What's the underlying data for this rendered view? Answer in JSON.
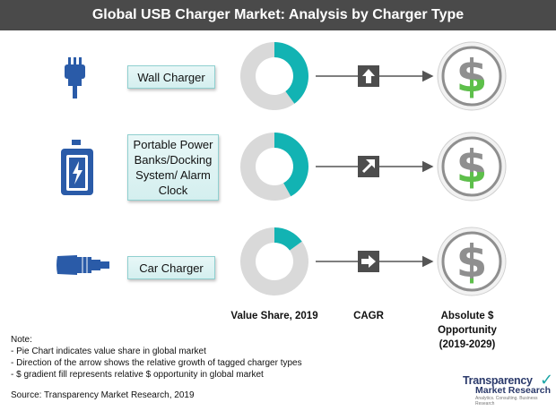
{
  "title": "Global USB Charger Market: Analysis by Charger Type",
  "columns": {
    "value_share": "Value Share, 2019",
    "cagr": "CAGR",
    "opportunity_line1": "Absolute $ Opportunity",
    "opportunity_line2": "(2019-2029)"
  },
  "rows": [
    {
      "label": "Wall Charger",
      "icon": "wall-plug-icon",
      "cagr_box": "CAGR",
      "arrow": "up"
    },
    {
      "label": "Portable Power Banks/Docking System/ Alarm Clock",
      "icon": "power-bank-icon",
      "arrow": "up-right"
    },
    {
      "label": "Car Charger",
      "icon": "car-charger-icon",
      "arrow": "right"
    }
  ],
  "notes": {
    "heading": "Note:",
    "items": [
      "Pie Chart indicates value share in global market",
      "Direction of the arrow shows the relative growth of tagged charger types",
      "$ gradient fill represents relative $ opportunity  in global market"
    ]
  },
  "source": "Source: Transparency Market Research, 2019",
  "logo": {
    "line1": "Transparency",
    "line2": "Market Research",
    "tagline": "Analytics. Consulting. Business Research"
  },
  "colors": {
    "teal": "#12b3b3",
    "grey": "#d9d9d9",
    "green": "#5dc04a",
    "dollar_grey": "#8f8f8f",
    "header": "#4a4a4a"
  },
  "chart_data": {
    "type": "pie",
    "categories": [
      "Wall Charger",
      "Portable Power Banks/Docking System/ Alarm Clock",
      "Car Charger"
    ],
    "values": [
      40,
      42,
      15
    ],
    "opportunity_fill": [
      0.45,
      0.42,
      0.25
    ],
    "title": "Global USB Charger Market: Analysis by Charger Type"
  }
}
